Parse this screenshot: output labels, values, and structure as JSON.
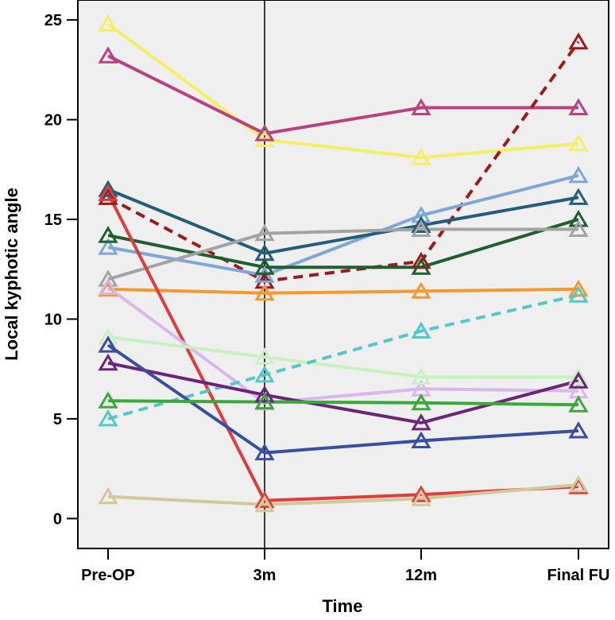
{
  "chart_data": {
    "type": "line",
    "xlabel": "Time",
    "ylabel": "Local kyphotic angle",
    "categories": [
      "Pre-OP",
      "3m",
      "12m",
      "Final FU"
    ],
    "ylim": [
      -1.5,
      26
    ],
    "yticks": [
      0,
      5,
      10,
      15,
      20,
      25
    ],
    "grid": false,
    "vertical_reference_line_at": "3m",
    "colors": {
      "plot_background": "#efefef",
      "axis": "#000000"
    },
    "series": [
      {
        "values": [
          24.8,
          19.0,
          18.1,
          18.8
        ],
        "color": "#f5f063",
        "dashed": false
      },
      {
        "values": [
          23.2,
          19.3,
          20.6,
          20.6
        ],
        "color": "#b8427e",
        "dashed": false
      },
      {
        "values": [
          16.1,
          11.9,
          12.9,
          23.9
        ],
        "color": "#9e1a1a",
        "dashed": true
      },
      {
        "values": [
          13.6,
          12.2,
          15.2,
          17.2
        ],
        "color": "#7ea7d8",
        "dashed": false
      },
      {
        "values": [
          16.5,
          13.3,
          14.7,
          16.1
        ],
        "color": "#235e78",
        "dashed": false
      },
      {
        "values": [
          14.2,
          12.6,
          12.6,
          15.0
        ],
        "color": "#1f5e2e",
        "dashed": false
      },
      {
        "values": [
          12.0,
          14.3,
          14.5,
          14.5
        ],
        "color": "#a3a3a3",
        "dashed": false
      },
      {
        "values": [
          11.5,
          11.3,
          11.4,
          11.5
        ],
        "color": "#f29a2e",
        "dashed": false
      },
      {
        "values": [
          16.3,
          0.9,
          1.2,
          1.6
        ],
        "color": "#e03c3c",
        "dashed": false
      },
      {
        "values": [
          11.6,
          5.8,
          6.5,
          6.4
        ],
        "color": "#d9b7ee",
        "dashed": false
      },
      {
        "values": [
          9.1,
          8.1,
          7.1,
          7.1
        ],
        "color": "#c7f2c0",
        "dashed": false
      },
      {
        "values": [
          5.0,
          7.2,
          9.4,
          11.2
        ],
        "color": "#54c7c9",
        "dashed": true
      },
      {
        "values": [
          7.8,
          6.2,
          4.8,
          6.9
        ],
        "color": "#6a2578",
        "dashed": false
      },
      {
        "values": [
          8.7,
          3.3,
          3.9,
          4.4
        ],
        "color": "#3a4ea0",
        "dashed": false
      },
      {
        "values": [
          5.9,
          5.85,
          5.8,
          5.7
        ],
        "color": "#3aa83a",
        "dashed": false
      },
      {
        "values": [
          1.1,
          0.7,
          1.0,
          1.7
        ],
        "color": "#d2c89a",
        "dashed": false
      }
    ]
  }
}
